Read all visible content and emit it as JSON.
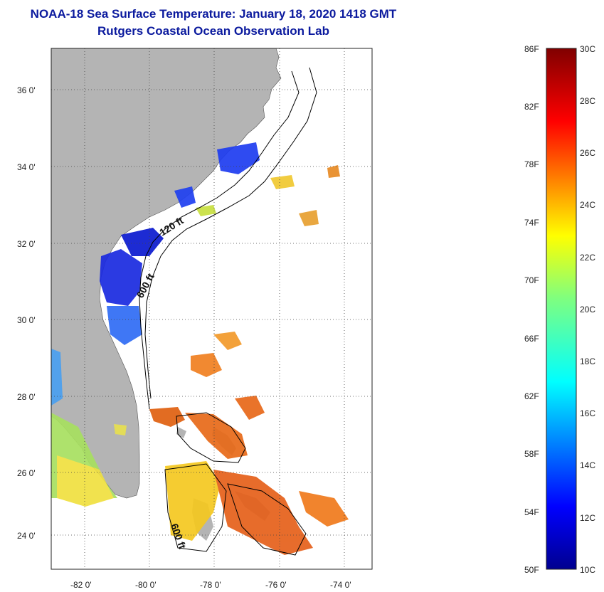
{
  "header": {
    "title": "NOAA-18 Sea Surface Temperature:  January 18, 2020 1418 GMT",
    "subtitle": "Rutgers Coastal Ocean Observation Lab"
  },
  "map": {
    "lon_ticks": [
      "-82 0'",
      "-80 0'",
      "-78 0'",
      "-76 0'",
      "-74 0'"
    ],
    "lat_ticks": [
      "36 0'",
      "34 0'",
      "32 0'",
      "30 0'",
      "28 0'",
      "26 0'",
      "24 0'"
    ],
    "contour_labels": [
      "120 ft",
      "600 ft",
      "600 ft"
    ],
    "colors": {
      "land": "#b4b4b4",
      "ocean": "#ffffff"
    }
  },
  "colorbar": {
    "fahrenheit_labels": [
      "86F",
      "82F",
      "78F",
      "74F",
      "70F",
      "66F",
      "62F",
      "58F",
      "54F",
      "50F"
    ],
    "celsius_labels": [
      "30C",
      "28C",
      "26C",
      "24C",
      "22C",
      "20C",
      "18C",
      "16C",
      "14C",
      "12C",
      "10C"
    ],
    "colormap": "jet"
  }
}
